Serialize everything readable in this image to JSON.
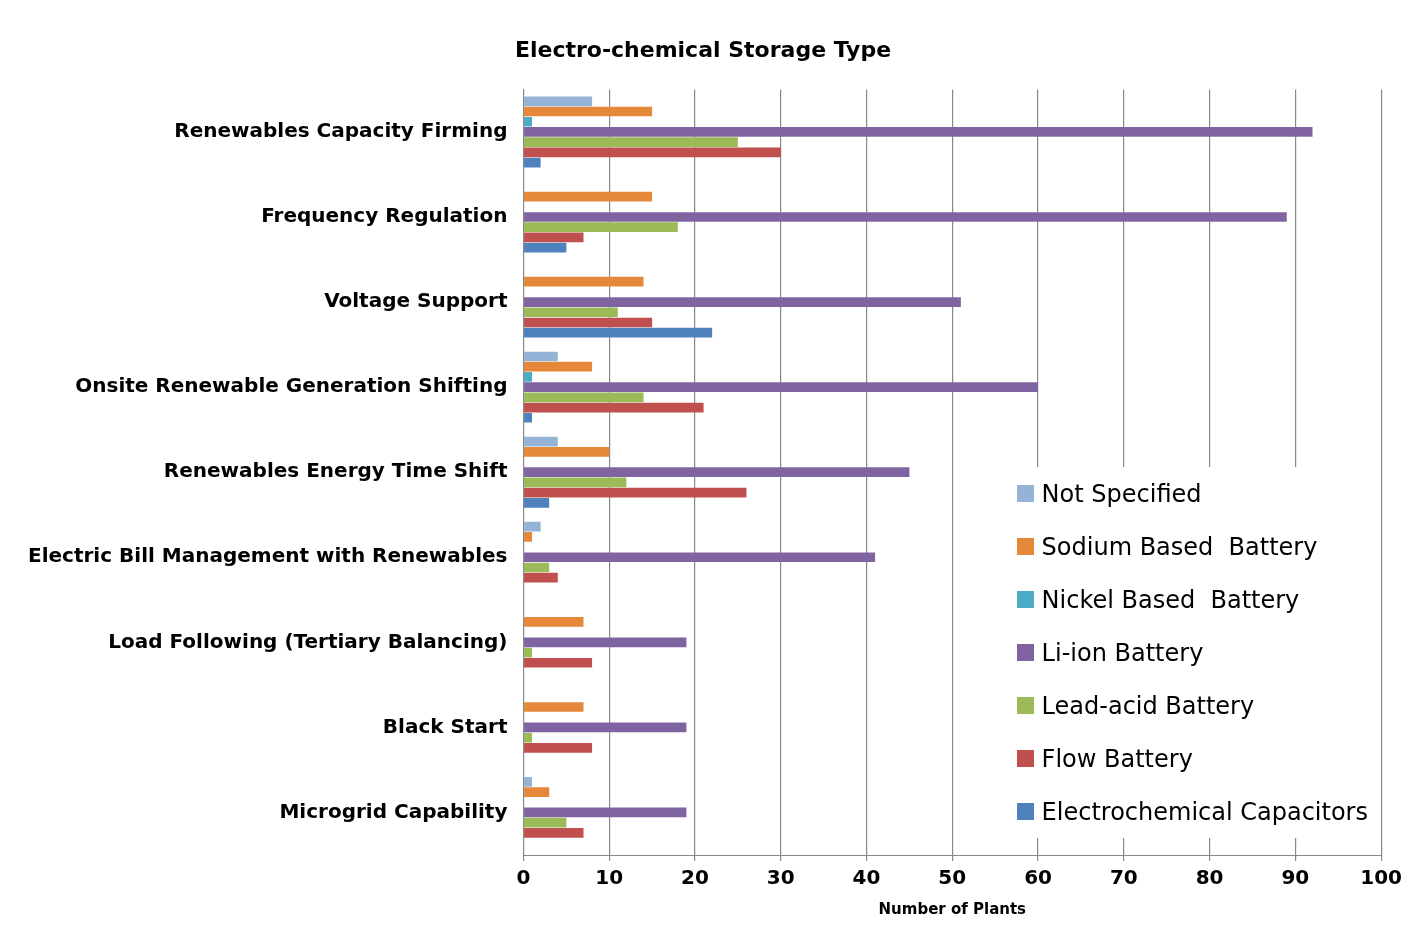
{
  "chart_data": {
    "type": "bar",
    "orientation": "horizontal",
    "title": "Electro-chemical Storage Type",
    "xlabel": "Number of Plants",
    "categories": [
      "Renewables Capacity Firming",
      "Frequency Regulation",
      "Voltage Support",
      "Onsite Renewable Generation Shifting",
      "Renewables Energy Time Shift",
      "Electric Bill Management with Renewables",
      "Load Following (Tertiary Balancing)",
      "Black Start",
      "Microgrid Capability"
    ],
    "series": [
      {
        "name": "Not Specified",
        "color": "#95b3d7",
        "values": [
          8,
          0,
          0,
          4,
          4,
          2,
          0,
          0,
          1
        ]
      },
      {
        "name": "Sodium Based  Battery",
        "color": "#e6883a",
        "values": [
          15,
          15,
          14,
          8,
          10,
          1,
          7,
          7,
          3
        ]
      },
      {
        "name": "Nickel Based  Battery",
        "color": "#4bacc6",
        "values": [
          1,
          0,
          0,
          1,
          0,
          0,
          0,
          0,
          0
        ]
      },
      {
        "name": "Li-ion Battery",
        "color": "#8064a2",
        "values": [
          92,
          89,
          51,
          60,
          45,
          41,
          19,
          19,
          19
        ]
      },
      {
        "name": "Lead-acid Battery",
        "color": "#9bbb59",
        "values": [
          25,
          18,
          11,
          14,
          12,
          3,
          1,
          1,
          5
        ]
      },
      {
        "name": "Flow Battery",
        "color": "#c0504d",
        "values": [
          30,
          7,
          15,
          21,
          26,
          4,
          8,
          8,
          7
        ]
      },
      {
        "name": "Electrochemical Capacitors",
        "color": "#4f81bd",
        "values": [
          2,
          5,
          22,
          1,
          3,
          0,
          0,
          0,
          0
        ]
      }
    ],
    "xlim": [
      0,
      100
    ],
    "xticks": [
      0,
      10,
      20,
      30,
      40,
      50,
      60,
      70,
      80,
      90,
      100
    ],
    "grid": "x",
    "legend": "bottom right"
  }
}
